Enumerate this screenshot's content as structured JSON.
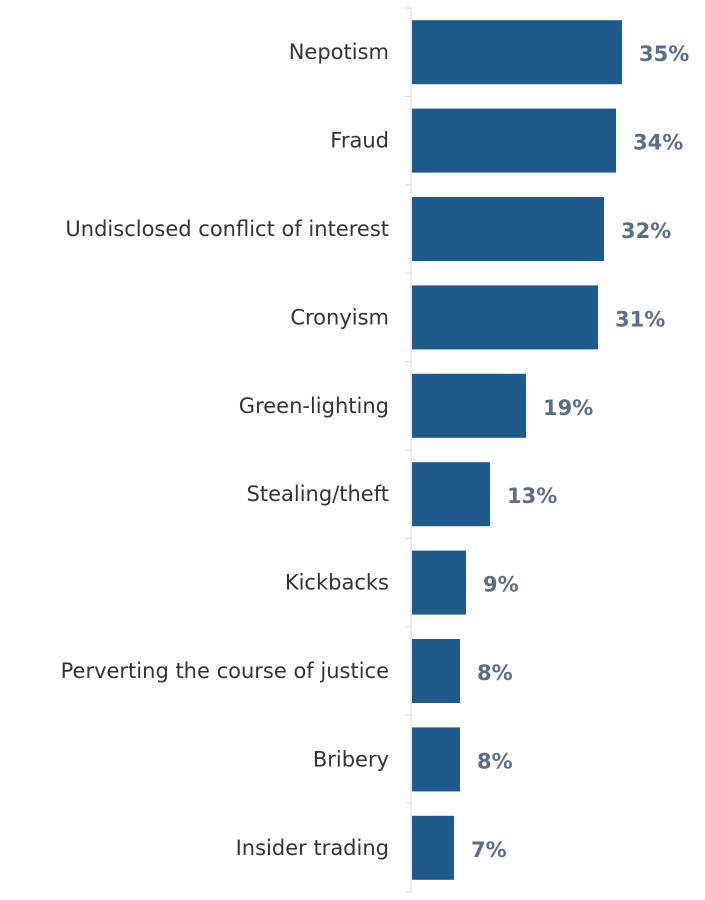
{
  "chart_data": {
    "type": "bar",
    "orientation": "horizontal",
    "title": "",
    "xlabel": "",
    "ylabel": "",
    "categories": [
      "Nepotism",
      "Fraud",
      "Undisclosed conflict of interest",
      "Cronyism",
      "Green-lighting",
      "Stealing/theft",
      "Kickbacks",
      "Perverting the course of justice",
      "Bribery",
      "Insider trading"
    ],
    "values": [
      35,
      34,
      32,
      31,
      19,
      13,
      9,
      8,
      8,
      7
    ],
    "value_labels": [
      "35%",
      "34%",
      "32%",
      "31%",
      "19%",
      "13%",
      "9%",
      "8%",
      "8%",
      "7%"
    ],
    "xlim": [
      0,
      35
    ],
    "grid": false,
    "legend": "none",
    "colors": {
      "bar": "#1f5a8c",
      "value_label": "#5a6e8c",
      "category_label": "#333333",
      "axis": "#d9d9d9"
    }
  }
}
